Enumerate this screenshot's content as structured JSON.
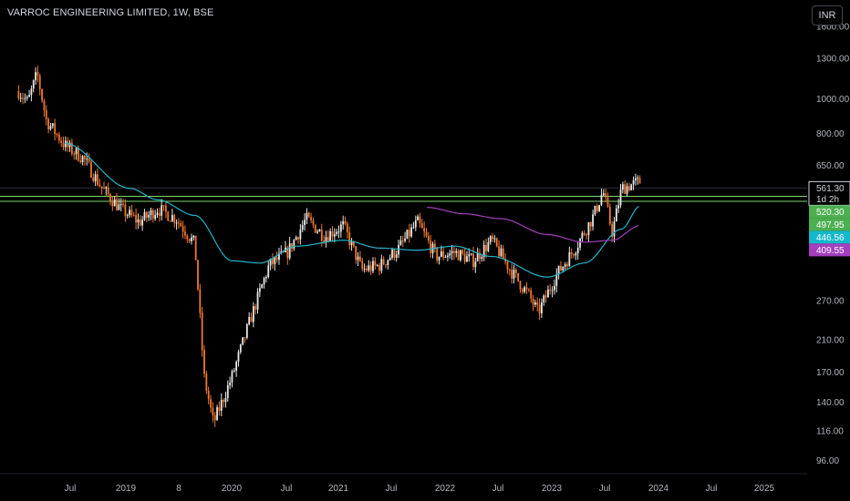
{
  "header": {
    "title": "VARROC ENGINEERING LIMITED, 1W, BSE",
    "currency_button": "INR"
  },
  "colors": {
    "background": "#000000",
    "candle_up": "#e8e8e8",
    "candle_down": "#f0772e",
    "ma_fast": "#1fb6c9",
    "ma_slow": "#a43fbf",
    "hline": "#7fd96b",
    "text": "#b2b5be"
  },
  "chart_data": {
    "type": "candlestick",
    "scale": "log",
    "ylim": [
      88,
      1900
    ],
    "y_ticks": [
      "1600.00",
      "1300.00",
      "1000.00",
      "800.00",
      "650.00",
      "270.00",
      "210.00",
      "170.00",
      "140.00",
      "116.00",
      "96.00"
    ],
    "x_ticks": [
      "Jul",
      "2019",
      "8",
      "2020",
      "Jul",
      "2021",
      "Jul",
      "2022",
      "Jul",
      "2023",
      "Jul",
      "2024",
      "Jul",
      "2025"
    ],
    "x_range": [
      "2018-05",
      "2025-08"
    ],
    "price_path": [
      [
        "2018-07",
        1050
      ],
      [
        "2018-08",
        980
      ],
      [
        "2018-09",
        1180
      ],
      [
        "2018-10",
        870
      ],
      [
        "2018-12",
        740
      ],
      [
        "2019-02",
        680
      ],
      [
        "2019-04",
        560
      ],
      [
        "2019-06",
        490
      ],
      [
        "2019-08",
        450
      ],
      [
        "2019-10",
        490
      ],
      [
        "2019-12",
        460
      ],
      [
        "2020-02",
        390
      ],
      [
        "2020-03",
        165
      ],
      [
        "2020-04",
        122
      ],
      [
        "2020-06",
        165
      ],
      [
        "2020-08",
        240
      ],
      [
        "2020-10",
        340
      ],
      [
        "2020-12",
        370
      ],
      [
        "2021-02",
        460
      ],
      [
        "2021-04",
        410
      ],
      [
        "2021-06",
        440
      ],
      [
        "2021-08",
        330
      ],
      [
        "2021-10",
        340
      ],
      [
        "2021-12",
        380
      ],
      [
        "2022-02",
        450
      ],
      [
        "2022-04",
        360
      ],
      [
        "2022-06",
        370
      ],
      [
        "2022-08",
        350
      ],
      [
        "2022-10",
        400
      ],
      [
        "2022-12",
        330
      ],
      [
        "2023-02",
        280
      ],
      [
        "2023-03",
        250
      ],
      [
        "2023-05",
        320
      ],
      [
        "2023-07",
        380
      ],
      [
        "2023-09",
        470
      ],
      [
        "2023-10",
        550
      ],
      [
        "2023-11",
        420
      ],
      [
        "2023-12",
        560
      ],
      [
        "2024-02",
        585
      ]
    ],
    "ma_fast": [
      [
        "2018-12",
        750
      ],
      [
        "2019-07",
        560
      ],
      [
        "2019-10",
        520
      ],
      [
        "2020-02",
        470
      ],
      [
        "2020-06",
        350
      ],
      [
        "2020-09",
        345
      ],
      [
        "2021-01",
        385
      ],
      [
        "2021-06",
        400
      ],
      [
        "2021-10",
        380
      ],
      [
        "2022-02",
        375
      ],
      [
        "2022-06",
        385
      ],
      [
        "2022-10",
        360
      ],
      [
        "2023-04",
        315
      ],
      [
        "2023-08",
        345
      ],
      [
        "2023-12",
        430
      ],
      [
        "2024-02",
        500
      ]
    ],
    "ma_slow": [
      [
        "2022-03",
        495
      ],
      [
        "2022-07",
        475
      ],
      [
        "2022-11",
        460
      ],
      [
        "2023-04",
        415
      ],
      [
        "2023-08",
        395
      ],
      [
        "2023-11",
        400
      ],
      [
        "2024-02",
        440
      ]
    ],
    "hlines": [
      532,
      515
    ],
    "price_tags": [
      {
        "label": "561.30",
        "sub": "1d 2h",
        "value": 561.3,
        "style": "current"
      },
      {
        "label": "520.30",
        "value": 520.3,
        "style": "green"
      },
      {
        "label": "497.95",
        "value": 497.95,
        "style": "green"
      },
      {
        "label": "446.56",
        "value": 446.56,
        "style": "cyan"
      },
      {
        "label": "409.55",
        "value": 409.55,
        "style": "purple"
      }
    ]
  }
}
